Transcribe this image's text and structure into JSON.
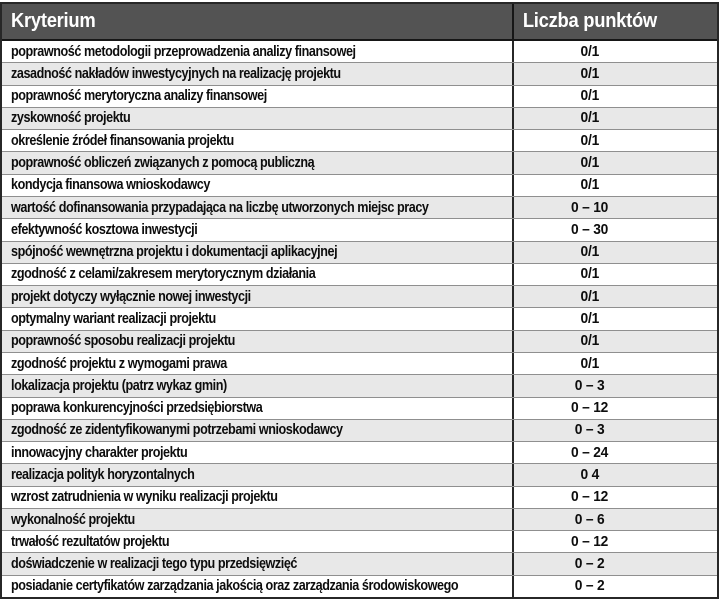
{
  "colors": {
    "header_bg": "#535353",
    "header_text": "#ffffff",
    "alt_row_bg": "#e8e8e8",
    "row_separator": "#8f8f8f",
    "outer_border": "#272727",
    "body_text": "#0d0d0d",
    "page_bg": "#ffffff"
  },
  "chart_data": {
    "type": "table",
    "columns": [
      "Kryterium",
      "Liczba punktów"
    ],
    "rows": [
      {
        "kryterium": "poprawność metodologii przeprowadzenia analizy finansowej",
        "punkty": "0/1"
      },
      {
        "kryterium": "zasadność nakładów inwestycyjnych na realizację projektu",
        "punkty": "0/1"
      },
      {
        "kryterium": "poprawność merytoryczna analizy finansowej",
        "punkty": "0/1"
      },
      {
        "kryterium": "zyskowność projektu",
        "punkty": "0/1"
      },
      {
        "kryterium": "określenie źródeł finansowania projektu",
        "punkty": "0/1"
      },
      {
        "kryterium": "poprawność obliczeń związanych z pomocą publiczną",
        "punkty": "0/1"
      },
      {
        "kryterium": "kondycja finansowa wnioskodawcy",
        "punkty": "0/1"
      },
      {
        "kryterium": "wartość dofinansowania przypadająca na liczbę utworzonych miejsc pracy",
        "punkty": "0 – 10"
      },
      {
        "kryterium": "efektywność kosztowa inwestycji",
        "punkty": "0 – 30"
      },
      {
        "kryterium": "spójność wewnętrzna projektu i dokumentacji aplikacyjnej",
        "punkty": "0/1"
      },
      {
        "kryterium": "zgodność z celami/zakresem merytorycznym działania",
        "punkty": "0/1"
      },
      {
        "kryterium": "projekt dotyczy wyłącznie nowej inwestycji",
        "punkty": "0/1"
      },
      {
        "kryterium": "optymalny wariant realizacji projektu",
        "punkty": "0/1"
      },
      {
        "kryterium": "poprawność sposobu realizacji projektu",
        "punkty": "0/1"
      },
      {
        "kryterium": "zgodność projektu z wymogami prawa",
        "punkty": "0/1"
      },
      {
        "kryterium": "lokalizacja projektu (patrz wykaz gmin)",
        "punkty": "0 – 3"
      },
      {
        "kryterium": "poprawa konkurencyjności przedsiębiorstwa",
        "punkty": "0 – 12"
      },
      {
        "kryterium": "zgodność ze zidentyfikowanymi potrzebami wnioskodawcy",
        "punkty": "0 – 3"
      },
      {
        "kryterium": "innowacyjny charakter projektu",
        "punkty": "0 – 24"
      },
      {
        "kryterium": "realizacja polityk horyzontalnych",
        "punkty": "0 4"
      },
      {
        "kryterium": "wzrost zatrudnienia w wyniku realizacji projektu",
        "punkty": "0 – 12"
      },
      {
        "kryterium": "wykonalność projektu",
        "punkty": "0 – 6"
      },
      {
        "kryterium": "trwałość rezultatów projektu",
        "punkty": "0 – 12"
      },
      {
        "kryterium": "doświadczenie w realizacji tego typu przedsięwzięć",
        "punkty": "0 – 2"
      },
      {
        "kryterium": "posiadanie certyfikatów zarządzania jakością oraz zarządzania środowiskowego",
        "punkty": "0 – 2"
      }
    ]
  }
}
